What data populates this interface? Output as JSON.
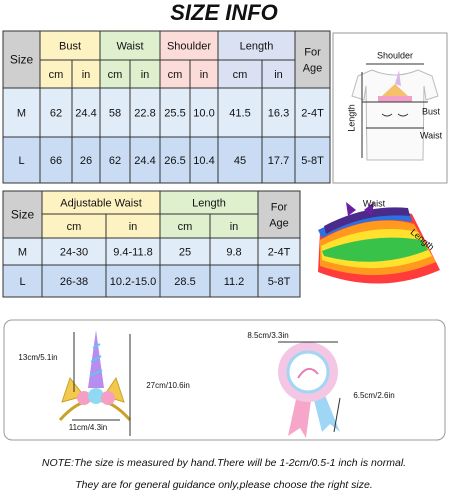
{
  "title": "SIZE INFO",
  "table1": {
    "corner": "Size",
    "groups": [
      "Bust",
      "Waist",
      "Shoulder",
      "Length"
    ],
    "age_header": [
      "For",
      "Age"
    ],
    "units": [
      "cm",
      "in",
      "cm",
      "in",
      "cm",
      "in",
      "cm",
      "in"
    ],
    "rows": [
      [
        "M",
        "62",
        "24.4",
        "58",
        "22.8",
        "25.5",
        "10.0",
        "41.5",
        "16.3",
        "2-4T"
      ],
      [
        "L",
        "66",
        "26",
        "62",
        "24.4",
        "26.5",
        "10.4",
        "45",
        "17.7",
        "5-8T"
      ]
    ]
  },
  "shirt_labels": {
    "shoulder": "Shoulder",
    "bust": "Bust",
    "waist": "Waist",
    "length": "Length"
  },
  "table2": {
    "corner": "Size",
    "groups": [
      "Adjustable Waist",
      "Length"
    ],
    "age_header": [
      "For",
      "Age"
    ],
    "units": [
      "cm",
      "in",
      "cm",
      "in"
    ],
    "rows": [
      [
        "M",
        "24-30",
        "9.4-11.8",
        "25",
        "9.8",
        "2-4T"
      ],
      [
        "L",
        "26-38",
        "10.2-15.0",
        "28.5",
        "11.2",
        "5-8T"
      ]
    ]
  },
  "tutu_labels": {
    "waist": "Waist",
    "length": "Length"
  },
  "headband_labels": {
    "horn": "13cm/5.1in",
    "width": "11cm/4.3in",
    "height": "27cm/10.6in"
  },
  "badge_labels": {
    "diameter": "8.5cm/3.3in",
    "ribbon": "6.5cm/2.6in"
  },
  "note": [
    "NOTE:The size is measured by hand.There will be 1-2cm/0.5-1 inch is normal.",
    "They are for general guidance only,please choose the right size."
  ]
}
